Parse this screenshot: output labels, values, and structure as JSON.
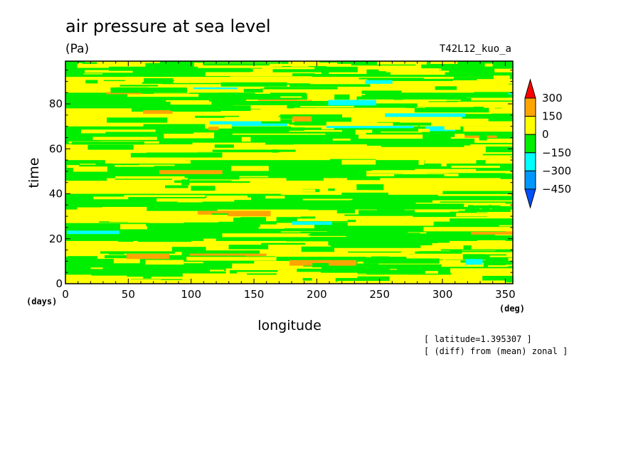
{
  "chart_data": {
    "type": "heatmap",
    "title": "air pressure at sea level",
    "units": "(Pa)",
    "run_label": "T42L12_kuo_a",
    "xlabel": "longitude",
    "ylabel": "time",
    "x_unit": "(deg)",
    "y_unit": "(days)",
    "xlim": [
      0,
      356
    ],
    "ylim": [
      0,
      99
    ],
    "x_ticks": [
      0,
      50,
      100,
      150,
      200,
      250,
      300,
      350
    ],
    "y_ticks": [
      0,
      20,
      40,
      60,
      80
    ],
    "annotations": [
      "[ latitude=1.395307 ]",
      "[ (diff) from (mean) zonal ]"
    ],
    "colorbar": {
      "levels": [
        300,
        150,
        0,
        -150,
        -300,
        -450
      ],
      "level_labels": [
        "300",
        "150",
        "0",
        "−150",
        "−300",
        "−450"
      ],
      "colors": [
        "#ff0000",
        "#ffa500",
        "#ffff00",
        "#00ee00",
        "#00ffff",
        "#0096ff",
        "#0050ff"
      ]
    },
    "dominant_bands": [
      {
        "t0": 0,
        "t1": 4,
        "value": 75
      },
      {
        "t0": 4,
        "t1": 12,
        "value": -75
      },
      {
        "t0": 12,
        "t1": 19,
        "value": 75
      },
      {
        "t0": 19,
        "t1": 27,
        "value": -75
      },
      {
        "t0": 27,
        "t1": 33,
        "value": 75
      },
      {
        "t0": 33,
        "t1": 40,
        "value": -75
      },
      {
        "t0": 40,
        "t1": 47,
        "value": 75
      },
      {
        "t0": 47,
        "t1": 55,
        "value": -75
      },
      {
        "t0": 55,
        "t1": 62,
        "value": 75
      },
      {
        "t0": 62,
        "t1": 70,
        "value": -75
      },
      {
        "t0": 70,
        "t1": 78,
        "value": 75
      },
      {
        "t0": 78,
        "t1": 85,
        "value": -75
      },
      {
        "t0": 85,
        "t1": 92,
        "value": 75
      },
      {
        "t0": 92,
        "t1": 99,
        "value": -75
      }
    ]
  }
}
